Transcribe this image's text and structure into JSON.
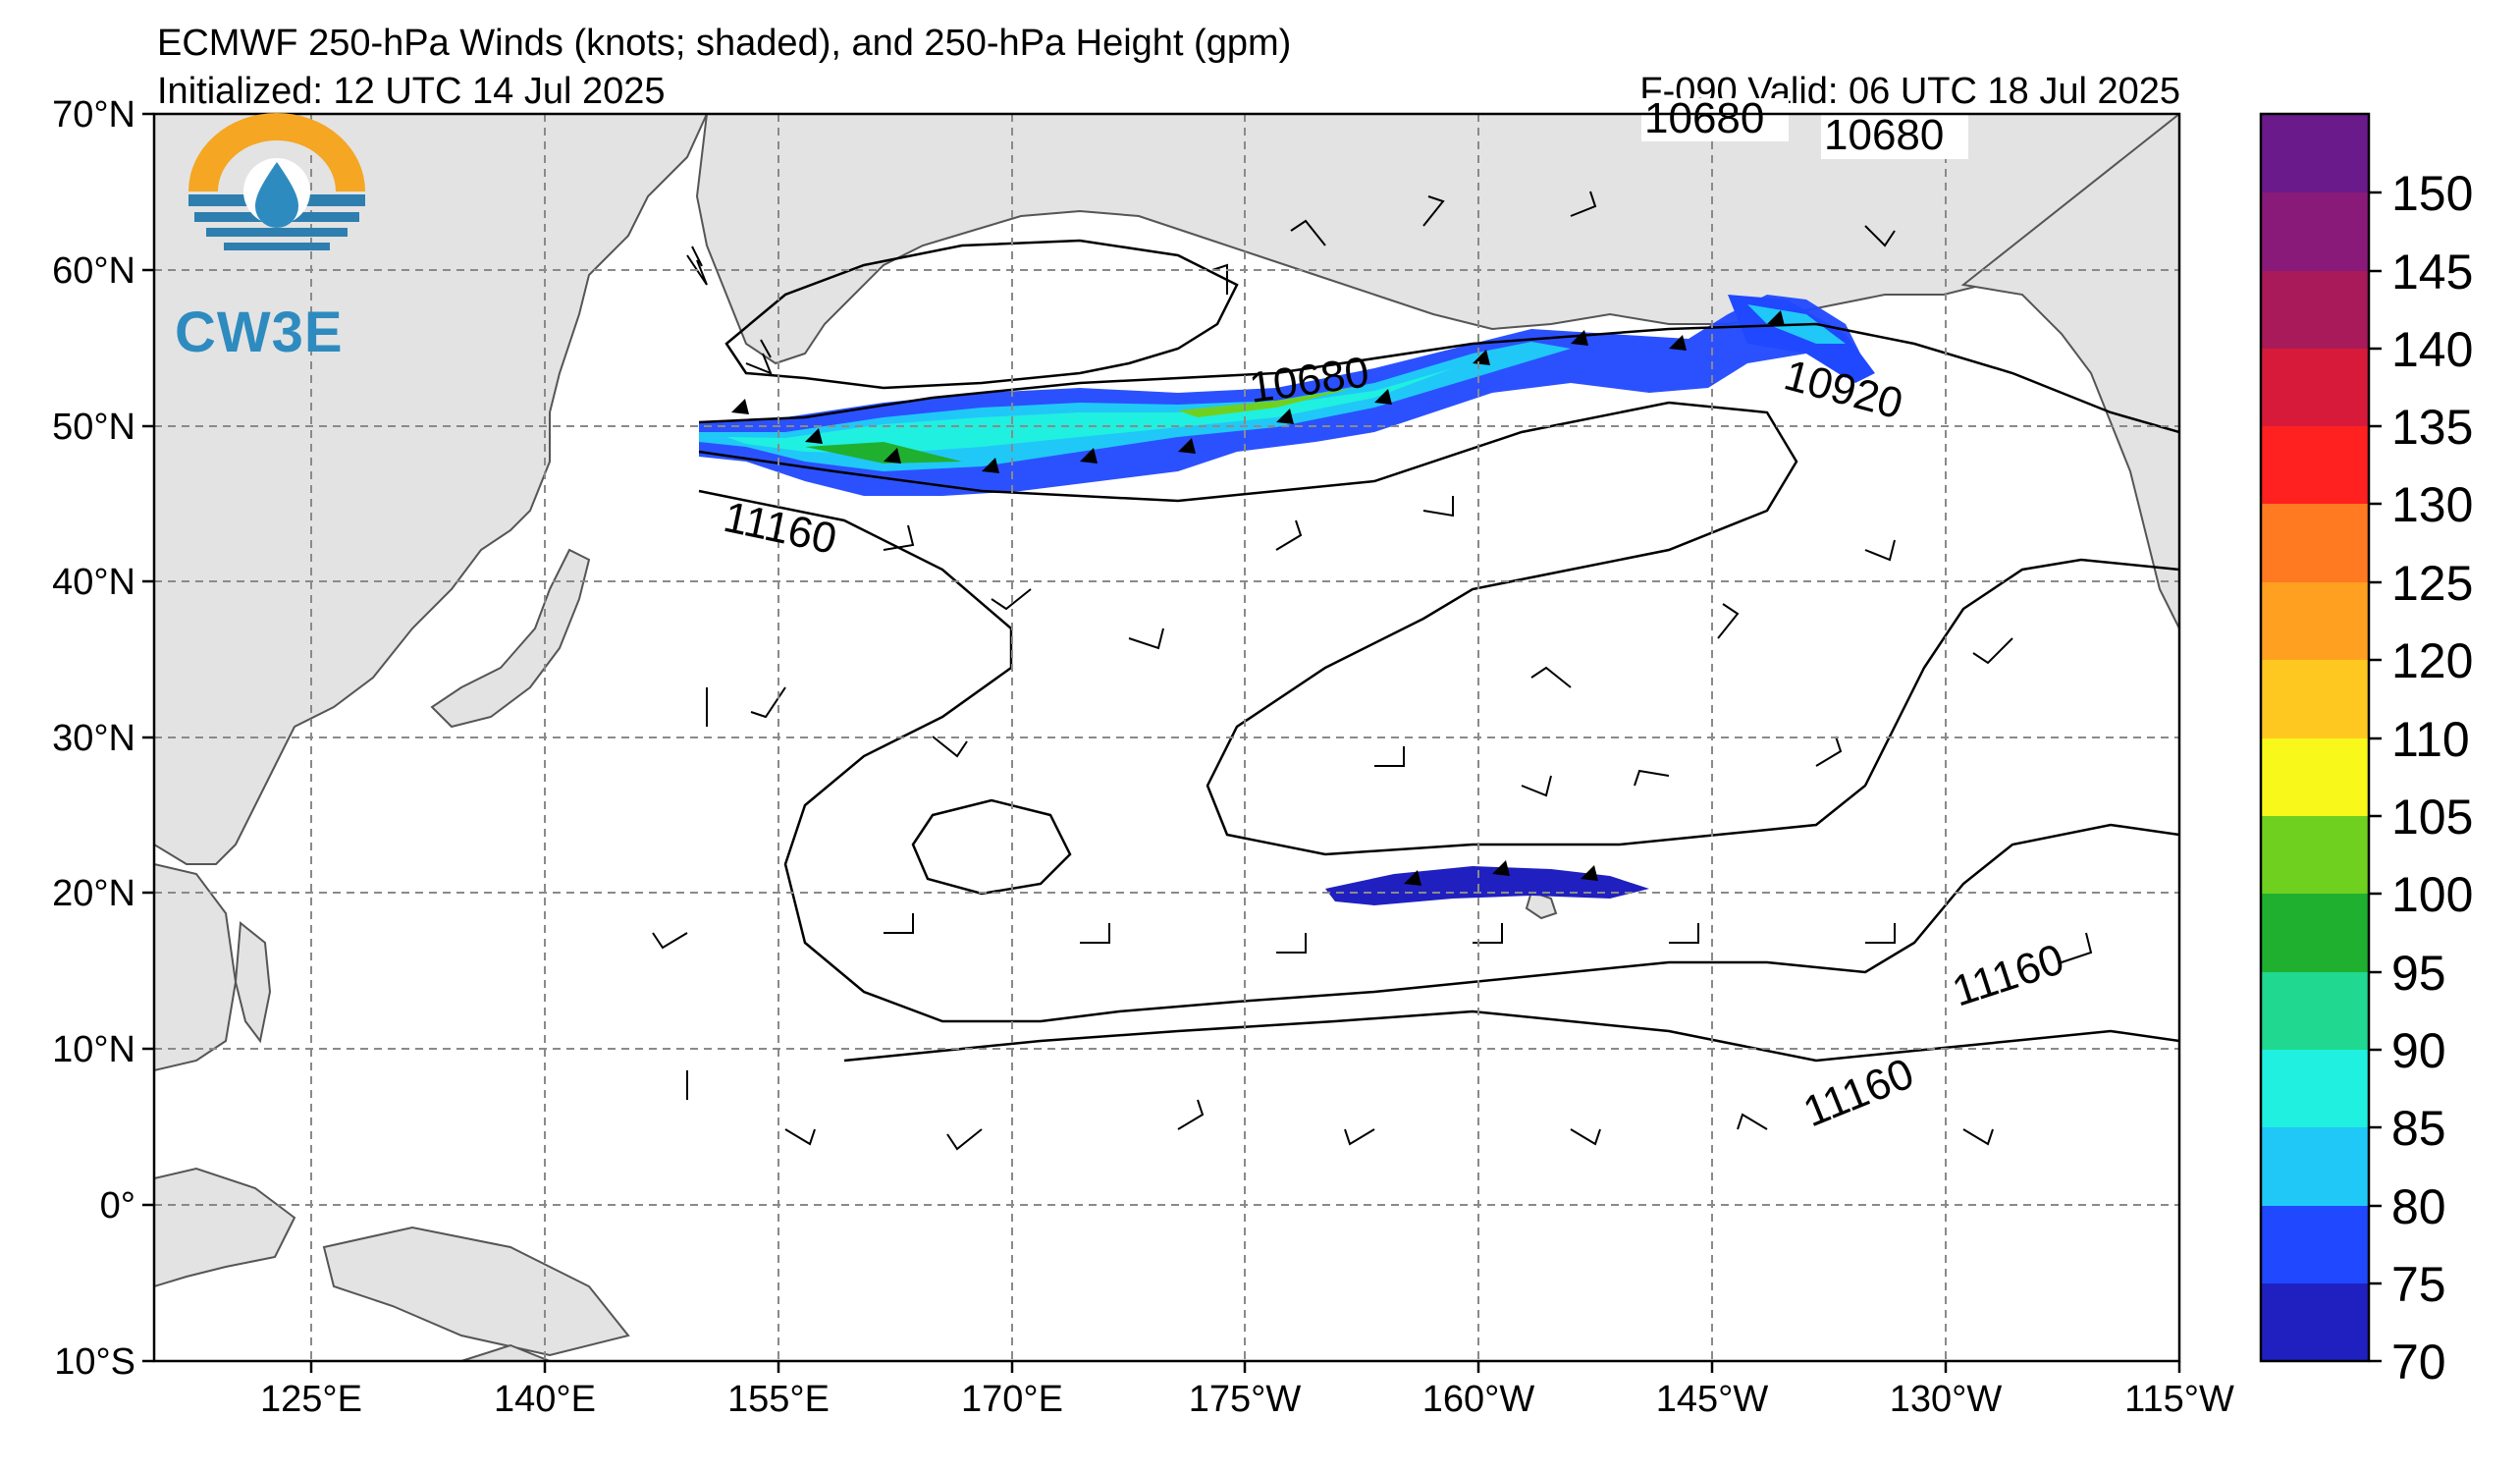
{
  "title": {
    "line1": "ECMWF 250-hPa Winds (knots; shaded), and 250-hPa Height (gpm)",
    "initialized": "Initialized: 12 UTC 14 Jul 2025",
    "valid": "F-090  Valid: 06 UTC 18 Jul 2025"
  },
  "logo": {
    "text": "CW3E",
    "icon": "water-drop-sun-icon"
  },
  "map": {
    "lat_labels": [
      "70°N",
      "60°N",
      "50°N",
      "40°N",
      "30°N",
      "20°N",
      "10°N",
      "0°",
      "10°S"
    ],
    "lon_labels": [
      "125°E",
      "140°E",
      "155°E",
      "170°E",
      "175°W",
      "160°W",
      "145°W",
      "130°W",
      "115°W"
    ],
    "land_color": "#e3e3e3",
    "ocean_color": "#ffffff"
  },
  "contours": {
    "labels": [
      "10680",
      "10680",
      "10680",
      "10920",
      "11160",
      "11160",
      "11160"
    ]
  },
  "colorbar": {
    "ticks": [
      "150",
      "145",
      "140",
      "135",
      "130",
      "125",
      "120",
      "110",
      "105",
      "100",
      "95",
      "90",
      "85",
      "80",
      "75",
      "70"
    ],
    "colors": [
      "#6a1a8a",
      "#8a1a7a",
      "#a81a5a",
      "#d81a3a",
      "#ff2020",
      "#ff7a20",
      "#ffa020",
      "#ffc820",
      "#f8f81a",
      "#70d020",
      "#20b030",
      "#20d890",
      "#20f0e0",
      "#20c8f8",
      "#2048ff",
      "#2020c0"
    ]
  }
}
